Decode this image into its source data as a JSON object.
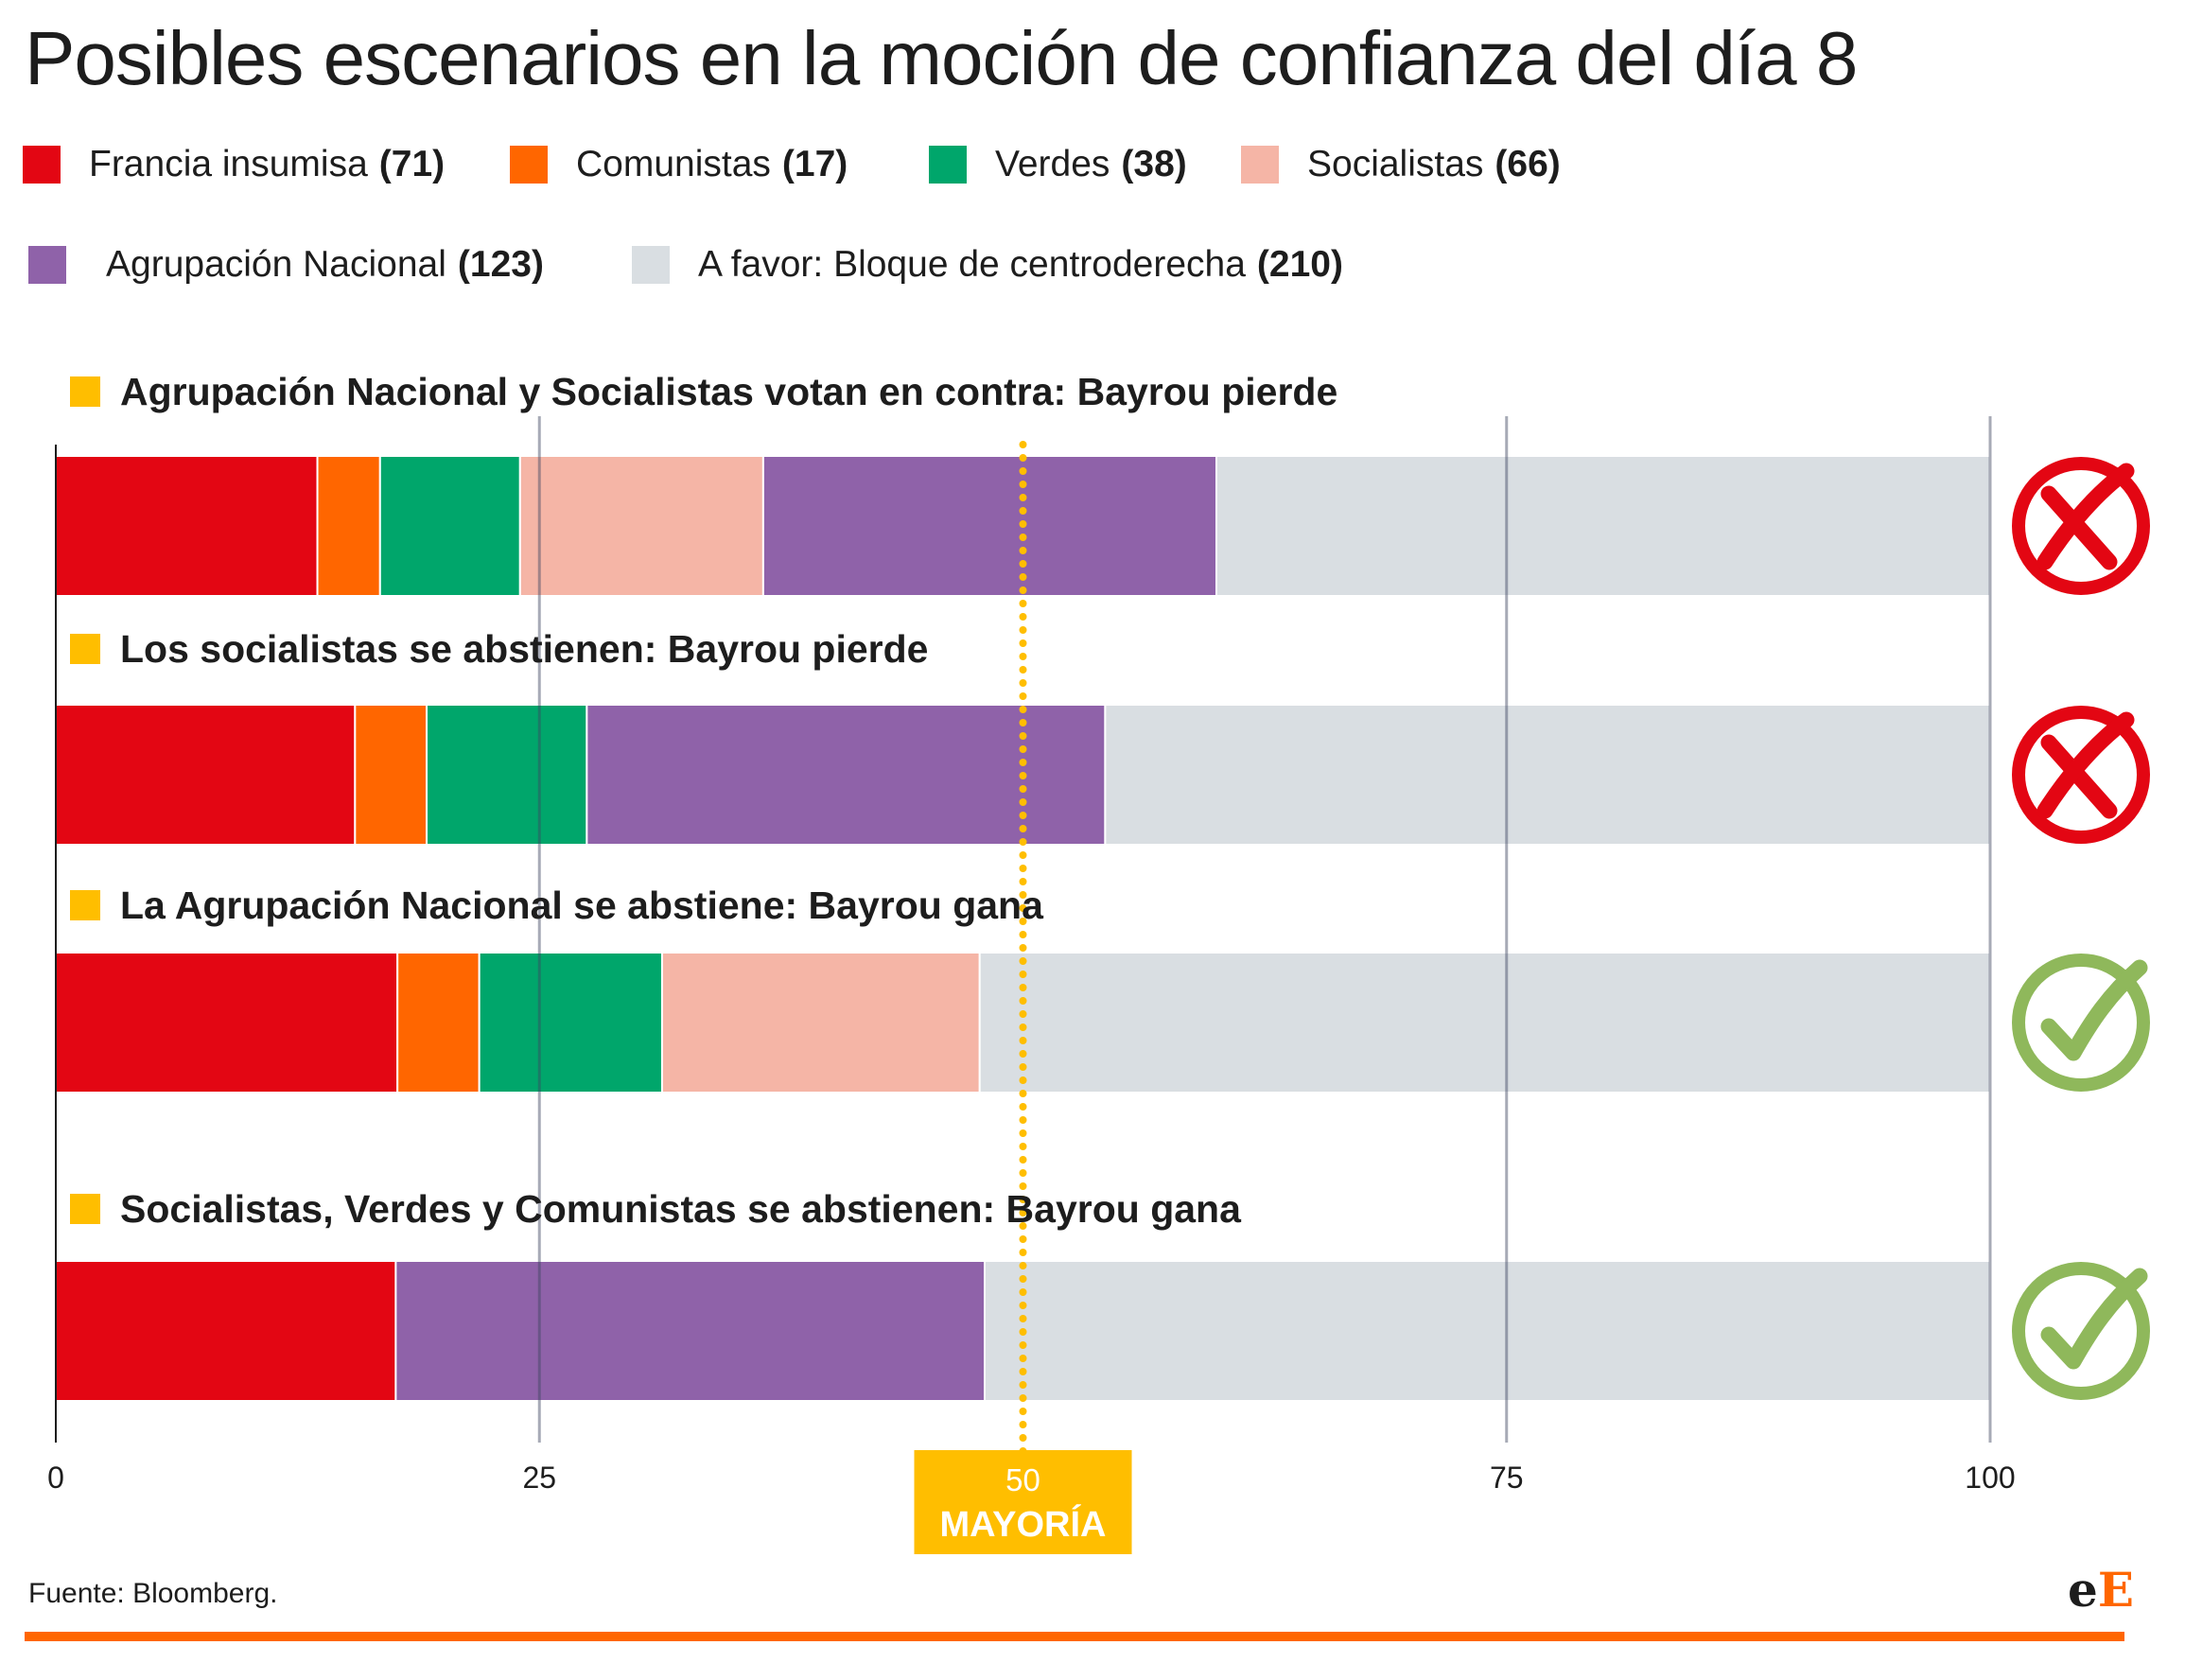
{
  "title": "Posibles escenarios en la moción de confianza del día 8",
  "legend": [
    {
      "label": "Francia insumisa",
      "count": "(71)",
      "color": "#e30613"
    },
    {
      "label": "Comunistas",
      "count": "(17)",
      "color": "#ff6600"
    },
    {
      "label": "Verdes",
      "count": "(38)",
      "color": "#00a66b"
    },
    {
      "label": "Socialistas",
      "count": "(66)",
      "color": "#f5b5a6"
    },
    {
      "label": "Agrupación Nacional",
      "count": "(123)",
      "color": "#8f62a9"
    },
    {
      "label": "A favor: Bloque de centroderecha",
      "count": "(210)",
      "color": "#d9dee2"
    }
  ],
  "chart_data": {
    "type": "bar",
    "orientation": "horizontal",
    "stacked": true,
    "xlim": [
      0,
      100
    ],
    "x_ticks": [
      0,
      25,
      50,
      75,
      100
    ],
    "threshold": {
      "value": 50,
      "label": "MAYORÍA"
    },
    "scenarios": [
      {
        "title": "Agrupación Nacional y Socialistas votan en contra: Bayrou pierde",
        "outcome": "pierde",
        "segments": [
          {
            "name": "Francia insumisa",
            "seats": 71
          },
          {
            "name": "Comunistas",
            "seats": 17
          },
          {
            "name": "Verdes",
            "seats": 38
          },
          {
            "name": "Socialistas",
            "seats": 66
          },
          {
            "name": "Agrupación Nacional",
            "seats": 123
          },
          {
            "name": "A favor: Bloque de centroderecha",
            "seats": 210
          }
        ]
      },
      {
        "title": "Los socialistas se abstienen: Bayrou pierde",
        "outcome": "pierde",
        "segments": [
          {
            "name": "Francia insumisa",
            "seats": 71
          },
          {
            "name": "Comunistas",
            "seats": 17
          },
          {
            "name": "Verdes",
            "seats": 38
          },
          {
            "name": "Agrupación Nacional",
            "seats": 123
          },
          {
            "name": "A favor: Bloque de centroderecha",
            "seats": 210
          }
        ]
      },
      {
        "title": "La Agrupación Nacional se abstiene: Bayrou gana",
        "outcome": "gana",
        "segments": [
          {
            "name": "Francia insumisa",
            "seats": 71
          },
          {
            "name": "Comunistas",
            "seats": 17
          },
          {
            "name": "Verdes",
            "seats": 38
          },
          {
            "name": "Socialistas",
            "seats": 66
          },
          {
            "name": "A favor: Bloque de centroderecha",
            "seats": 210
          }
        ]
      },
      {
        "title": "Socialistas, Verdes y Comunistas se abstienen: Bayrou gana",
        "outcome": "gana",
        "segments": [
          {
            "name": "Francia insumisa",
            "seats": 71
          },
          {
            "name": "Agrupación Nacional",
            "seats": 123
          },
          {
            "name": "A favor: Bloque de centroderecha",
            "seats": 210
          }
        ]
      }
    ],
    "colors": {
      "Francia insumisa": "#e30613",
      "Comunistas": "#ff6600",
      "Verdes": "#00a66b",
      "Socialistas": "#f5b5a6",
      "Agrupación Nacional": "#8f62a9",
      "A favor: Bloque de centroderecha": "#d9dee2"
    },
    "marker_color": "#ffbe00",
    "lose_color": "#e30613",
    "win_color": "#8fb85b"
  },
  "source": "Fuente: Bloomberg.",
  "logo": {
    "first": "e",
    "second": "E"
  }
}
